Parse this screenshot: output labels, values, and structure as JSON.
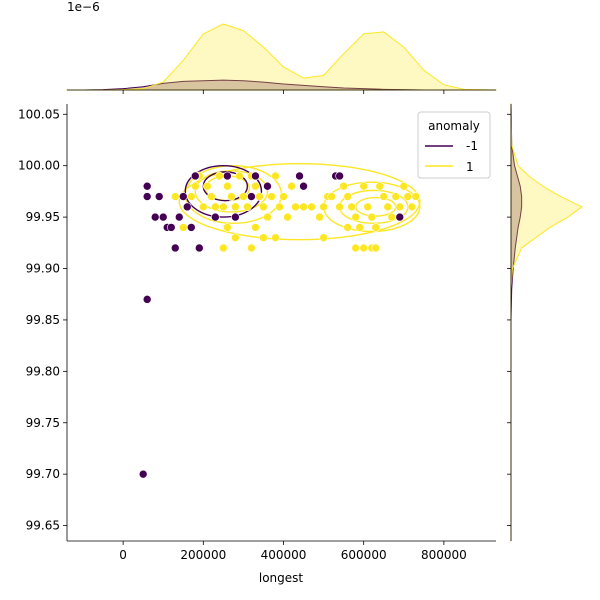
{
  "chart_data": {
    "type": "scatter",
    "title": "",
    "xlabel": "longest",
    "ylabel": "",
    "xlim": [
      -140000,
      930000
    ],
    "ylim": [
      99.635,
      100.06
    ],
    "x_ticks": [
      0,
      200000,
      400000,
      600000,
      800000
    ],
    "x_tick_labels": [
      "0",
      "200000",
      "400000",
      "600000",
      "800000"
    ],
    "y_ticks": [
      99.65,
      99.7,
      99.75,
      99.8,
      99.85,
      99.9,
      99.95,
      100.0,
      100.05
    ],
    "y_tick_labels": [
      "99.65",
      "99.70",
      "99.75",
      "99.80",
      "99.85",
      "99.90",
      "99.95",
      "100.00",
      "100.05"
    ],
    "top_marginal_scale_label": "1e−6",
    "legend": {
      "title": "anomaly",
      "placement": "upper right",
      "entries": [
        {
          "label": "-1",
          "color": "#440154"
        },
        {
          "label": "1",
          "color": "#fde725"
        }
      ]
    },
    "grid": false,
    "series": [
      {
        "name": "-1",
        "color": "#440154",
        "points": [
          [
            50000,
            99.7
          ],
          [
            60000,
            99.87
          ],
          [
            60000,
            99.97
          ],
          [
            60000,
            99.98
          ],
          [
            80000,
            99.95
          ],
          [
            90000,
            99.97
          ],
          [
            100000,
            99.95
          ],
          [
            110000,
            99.94
          ],
          [
            120000,
            99.94
          ],
          [
            130000,
            99.92
          ],
          [
            140000,
            99.95
          ],
          [
            150000,
            99.97
          ],
          [
            160000,
            99.96
          ],
          [
            170000,
            99.94
          ],
          [
            180000,
            99.99
          ],
          [
            190000,
            99.92
          ],
          [
            230000,
            99.95
          ],
          [
            260000,
            99.99
          ],
          [
            280000,
            99.95
          ],
          [
            320000,
            99.97
          ],
          [
            330000,
            99.99
          ],
          [
            360000,
            99.98
          ],
          [
            440000,
            99.99
          ],
          [
            450000,
            99.98
          ],
          [
            530000,
            99.99
          ],
          [
            540000,
            99.99
          ],
          [
            690000,
            99.95
          ]
        ]
      },
      {
        "name": "1",
        "color": "#fde725",
        "points": [
          [
            130000,
            99.97
          ],
          [
            150000,
            99.94
          ],
          [
            170000,
            99.97
          ],
          [
            180000,
            99.98
          ],
          [
            190000,
            99.99
          ],
          [
            200000,
            99.96
          ],
          [
            210000,
            99.98
          ],
          [
            220000,
            99.97
          ],
          [
            230000,
            99.96
          ],
          [
            240000,
            99.99
          ],
          [
            250000,
            99.96
          ],
          [
            260000,
            99.98
          ],
          [
            270000,
            99.97
          ],
          [
            280000,
            99.96
          ],
          [
            290000,
            99.99
          ],
          [
            300000,
            99.97
          ],
          [
            310000,
            99.96
          ],
          [
            320000,
            99.99
          ],
          [
            330000,
            99.98
          ],
          [
            340000,
            99.97
          ],
          [
            350000,
            99.96
          ],
          [
            360000,
            99.95
          ],
          [
            370000,
            99.97
          ],
          [
            380000,
            99.99
          ],
          [
            390000,
            99.96
          ],
          [
            400000,
            99.97
          ],
          [
            410000,
            99.95
          ],
          [
            420000,
            99.98
          ],
          [
            430000,
            99.96
          ],
          [
            450000,
            99.96
          ],
          [
            470000,
            99.96
          ],
          [
            490000,
            99.95
          ],
          [
            500000,
            99.96
          ],
          [
            510000,
            99.97
          ],
          [
            520000,
            99.97
          ],
          [
            540000,
            99.96
          ],
          [
            550000,
            99.98
          ],
          [
            560000,
            99.97
          ],
          [
            570000,
            99.96
          ],
          [
            580000,
            99.95
          ],
          [
            590000,
            99.94
          ],
          [
            600000,
            99.98
          ],
          [
            610000,
            99.96
          ],
          [
            620000,
            99.95
          ],
          [
            630000,
            99.94
          ],
          [
            640000,
            99.98
          ],
          [
            650000,
            99.97
          ],
          [
            660000,
            99.96
          ],
          [
            670000,
            99.95
          ],
          [
            680000,
            99.97
          ],
          [
            690000,
            99.96
          ],
          [
            700000,
            99.98
          ],
          [
            710000,
            99.97
          ],
          [
            720000,
            99.96
          ],
          [
            730000,
            99.97
          ],
          [
            600000,
            99.92
          ],
          [
            620000,
            99.92
          ],
          [
            630000,
            99.92
          ],
          [
            250000,
            99.92
          ],
          [
            320000,
            99.92
          ],
          [
            260000,
            99.94
          ],
          [
            280000,
            99.93
          ],
          [
            330000,
            99.94
          ],
          [
            350000,
            99.93
          ],
          [
            380000,
            99.93
          ],
          [
            500000,
            99.93
          ],
          [
            560000,
            99.94
          ],
          [
            580000,
            99.92
          ]
        ]
      }
    ],
    "top_marginal": {
      "x": [
        -140000,
        -100000,
        -50000,
        0,
        50000,
        100000,
        150000,
        200000,
        250000,
        300000,
        350000,
        400000,
        450000,
        500000,
        550000,
        600000,
        650000,
        700000,
        750000,
        800000,
        850000,
        930000
      ],
      "series": [
        {
          "name": "-1",
          "density": [
            0.0,
            0.0,
            0.005,
            0.02,
            0.05,
            0.1,
            0.13,
            0.14,
            0.15,
            0.14,
            0.12,
            0.09,
            0.07,
            0.05,
            0.03,
            0.02,
            0.01,
            0.005,
            0.0,
            0.0,
            0.0,
            0.0
          ]
        },
        {
          "name": "1",
          "density": [
            0.0,
            0.0,
            0.0,
            0.005,
            0.02,
            0.12,
            0.45,
            0.85,
            1.0,
            0.9,
            0.65,
            0.35,
            0.18,
            0.22,
            0.55,
            0.85,
            0.88,
            0.65,
            0.3,
            0.08,
            0.01,
            0.0
          ]
        }
      ]
    },
    "right_marginal": {
      "y": [
        99.635,
        99.85,
        99.88,
        99.9,
        99.92,
        99.94,
        99.95,
        99.96,
        99.97,
        99.98,
        99.99,
        100.0,
        100.02,
        100.06
      ],
      "series": [
        {
          "name": "-1",
          "density": [
            0.0,
            0.0,
            0.01,
            0.03,
            0.06,
            0.1,
            0.13,
            0.15,
            0.15,
            0.13,
            0.09,
            0.05,
            0.01,
            0.0
          ]
        },
        {
          "name": "1",
          "density": [
            0.0,
            0.0,
            0.0,
            0.02,
            0.15,
            0.55,
            0.8,
            1.0,
            0.7,
            0.45,
            0.25,
            0.1,
            0.01,
            0.0
          ]
        }
      ]
    }
  }
}
